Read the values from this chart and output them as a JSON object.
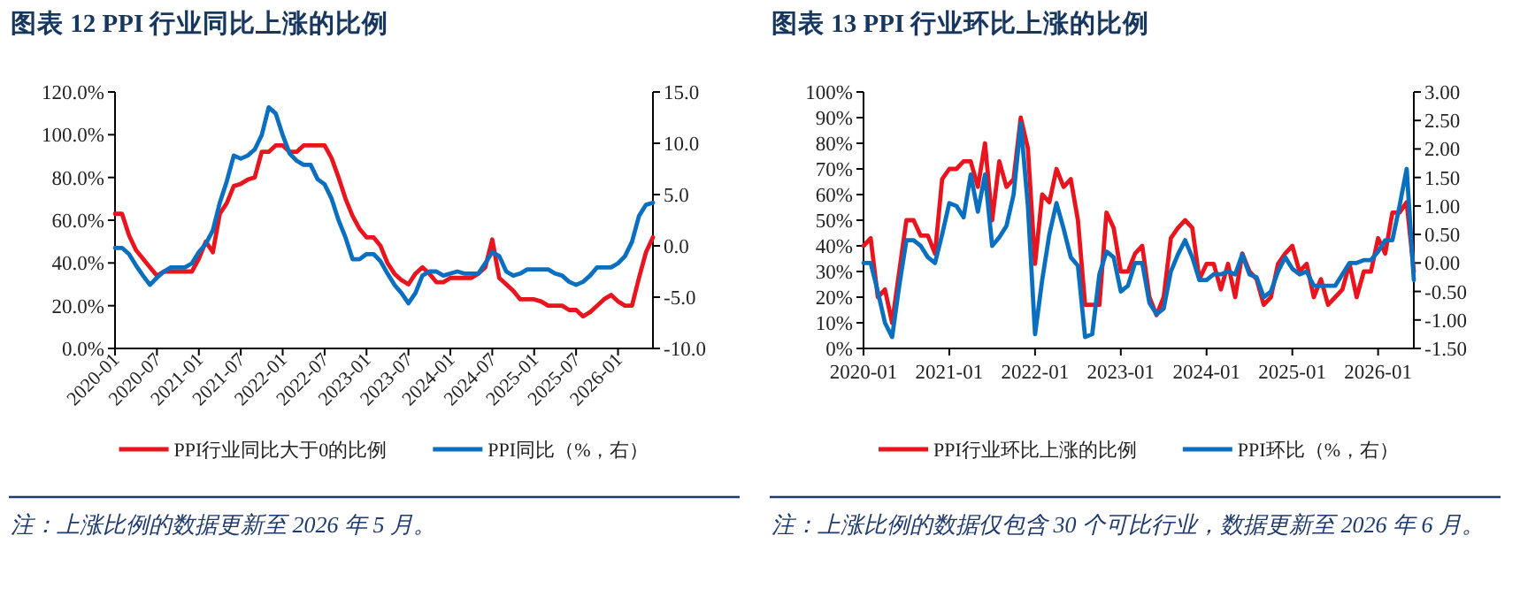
{
  "chart_data": [
    {
      "type": "line",
      "title": "图表 12   PPI 行业同比上涨的比例",
      "legend": "bottom",
      "x": [
        "2020-01",
        "2020-02",
        "2020-03",
        "2020-04",
        "2020-05",
        "2020-06",
        "2020-07",
        "2020-08",
        "2020-09",
        "2020-10",
        "2020-11",
        "2020-12",
        "2021-01",
        "2021-02",
        "2021-03",
        "2021-04",
        "2021-05",
        "2021-06",
        "2021-07",
        "2021-08",
        "2021-09",
        "2021-10",
        "2021-11",
        "2021-12",
        "2022-01",
        "2022-02",
        "2022-03",
        "2022-04",
        "2022-05",
        "2022-06",
        "2022-07",
        "2022-08",
        "2022-09",
        "2022-10",
        "2022-11",
        "2022-12",
        "2023-01",
        "2023-02",
        "2023-03",
        "2023-04",
        "2023-05",
        "2023-06",
        "2023-07",
        "2023-08",
        "2023-09",
        "2023-10",
        "2023-11",
        "2023-12",
        "2024-01",
        "2024-02",
        "2024-03",
        "2024-04",
        "2024-05",
        "2024-06",
        "2024-07",
        "2024-08",
        "2024-09",
        "2024-10",
        "2024-11",
        "2024-12",
        "2025-01",
        "2025-02",
        "2025-03",
        "2025-04",
        "2025-05",
        "2025-06",
        "2025-07",
        "2025-08",
        "2025-09",
        "2025-10",
        "2025-11",
        "2025-12",
        "2026-01",
        "2026-02",
        "2026-03",
        "2026-04",
        "2026-05",
        "2026-06"
      ],
      "xlim": [
        "2020-01",
        "2026-06"
      ],
      "xticks": [
        "2020-01",
        "2020-07",
        "2021-01",
        "2021-07",
        "2022-01",
        "2022-07",
        "2023-01",
        "2023-07",
        "2024-01",
        "2024-07",
        "2025-01",
        "2025-07",
        "2026-01"
      ],
      "ylim": [
        0,
        120
      ],
      "yticks": [
        {
          "value": 0,
          "label": "0.0%"
        },
        {
          "value": 20,
          "label": "20.0%"
        },
        {
          "value": 40,
          "label": "40.0%"
        },
        {
          "value": 60,
          "label": "60.0%"
        },
        {
          "value": 80,
          "label": "80.0%"
        },
        {
          "value": 100,
          "label": "100.0%"
        },
        {
          "value": 120,
          "label": "120.0%"
        }
      ],
      "y2lim": [
        -10,
        15
      ],
      "y2ticks": [
        {
          "value": -10,
          "label": "-10.0"
        },
        {
          "value": -5,
          "label": "-5.0"
        },
        {
          "value": 0,
          "label": "0.0"
        },
        {
          "value": 5,
          "label": "5.0"
        },
        {
          "value": 10,
          "label": "10.0"
        },
        {
          "value": 15,
          "label": "15.0"
        }
      ],
      "series": [
        {
          "name": "PPI行业同比大于0的比例",
          "color": "#e8141e",
          "values": [
            63,
            63,
            53,
            46,
            42,
            38,
            34,
            36,
            36,
            36,
            36,
            36,
            42,
            50,
            45,
            63,
            68,
            76,
            77,
            79,
            80,
            92,
            92,
            95,
            95,
            92,
            92,
            95,
            95,
            95,
            95,
            89,
            80,
            70,
            62,
            56,
            52,
            52,
            48,
            40,
            35,
            32,
            30,
            35,
            38,
            35,
            31,
            31,
            33,
            33,
            33,
            33,
            35,
            38,
            51,
            33,
            30,
            27,
            23,
            23,
            23,
            22,
            20,
            20,
            20,
            18,
            18,
            15,
            17,
            20,
            23,
            25,
            22,
            20,
            20,
            33,
            45,
            52
          ]
        },
        {
          "name": "PPI同比（%，右）",
          "color": "#0b6fc0",
          "axis": "y2",
          "values": [
            -0.2,
            -0.2,
            -0.8,
            -1.9,
            -2.9,
            -3.8,
            -3.1,
            -2.5,
            -2.1,
            -2.1,
            -2.1,
            -1.7,
            -0.6,
            0.2,
            1.5,
            4.2,
            6.3,
            8.8,
            8.5,
            8.8,
            9.4,
            10.8,
            13.5,
            12.9,
            10.8,
            9.0,
            8.3,
            7.9,
            7.9,
            6.5,
            6.0,
            4.6,
            2.5,
            0.8,
            -1.3,
            -1.3,
            -0.8,
            -0.8,
            -1.5,
            -2.7,
            -3.8,
            -4.6,
            -5.6,
            -4.6,
            -2.9,
            -2.5,
            -2.5,
            -2.9,
            -2.7,
            -2.5,
            -2.7,
            -2.7,
            -2.7,
            -1.7,
            -0.6,
            -1.0,
            -2.5,
            -2.9,
            -2.7,
            -2.3,
            -2.3,
            -2.3,
            -2.3,
            -2.7,
            -2.9,
            -3.5,
            -3.8,
            -3.5,
            -2.9,
            -2.1,
            -2.1,
            -2.1,
            -1.7,
            -1.0,
            0.4,
            2.9,
            4.0,
            4.2
          ]
        }
      ],
      "annotations": [
        "注：上涨比例的数据更新至 2026 年 5 月。"
      ]
    },
    {
      "type": "line",
      "title": "图表 13   PPI 行业环比上涨的比例",
      "legend": "bottom",
      "x": [
        "2020-01",
        "2020-02",
        "2020-03",
        "2020-04",
        "2020-05",
        "2020-06",
        "2020-07",
        "2020-08",
        "2020-09",
        "2020-10",
        "2020-11",
        "2020-12",
        "2021-01",
        "2021-02",
        "2021-03",
        "2021-04",
        "2021-05",
        "2021-06",
        "2021-07",
        "2021-08",
        "2021-09",
        "2021-10",
        "2021-11",
        "2021-12",
        "2022-01",
        "2022-02",
        "2022-03",
        "2022-04",
        "2022-05",
        "2022-06",
        "2022-07",
        "2022-08",
        "2022-09",
        "2022-10",
        "2022-11",
        "2022-12",
        "2023-01",
        "2023-02",
        "2023-03",
        "2023-04",
        "2023-05",
        "2023-06",
        "2023-07",
        "2023-08",
        "2023-09",
        "2023-10",
        "2023-11",
        "2023-12",
        "2024-01",
        "2024-02",
        "2024-03",
        "2024-04",
        "2024-05",
        "2024-06",
        "2024-07",
        "2024-08",
        "2024-09",
        "2024-10",
        "2024-11",
        "2024-12",
        "2025-01",
        "2025-02",
        "2025-03",
        "2025-04",
        "2025-05",
        "2025-06",
        "2025-07",
        "2025-08",
        "2025-09",
        "2025-10",
        "2025-11",
        "2025-12",
        "2026-01",
        "2026-02",
        "2026-03",
        "2026-04",
        "2026-05",
        "2026-06"
      ],
      "xlim": [
        "2020-01",
        "2026-06"
      ],
      "xticks": [
        "2020-01",
        "2021-01",
        "2022-01",
        "2023-01",
        "2024-01",
        "2025-01",
        "2026-01"
      ],
      "ylim": [
        0,
        100
      ],
      "yticks": [
        {
          "value": 0,
          "label": "0%"
        },
        {
          "value": 10,
          "label": "10%"
        },
        {
          "value": 20,
          "label": "20%"
        },
        {
          "value": 30,
          "label": "30%"
        },
        {
          "value": 40,
          "label": "40%"
        },
        {
          "value": 50,
          "label": "50%"
        },
        {
          "value": 60,
          "label": "60%"
        },
        {
          "value": 70,
          "label": "70%"
        },
        {
          "value": 80,
          "label": "80%"
        },
        {
          "value": 90,
          "label": "90%"
        },
        {
          "value": 100,
          "label": "100%"
        }
      ],
      "y2lim": [
        -1.5,
        3
      ],
      "y2ticks": [
        {
          "value": -1.5,
          "label": "-1.50"
        },
        {
          "value": -1,
          "label": "-1.00"
        },
        {
          "value": -0.5,
          "label": "-0.50"
        },
        {
          "value": 0,
          "label": "0.00"
        },
        {
          "value": 0.5,
          "label": "0.50"
        },
        {
          "value": 1,
          "label": "1.00"
        },
        {
          "value": 1.5,
          "label": "1.50"
        },
        {
          "value": 2,
          "label": "2.00"
        },
        {
          "value": 2.5,
          "label": "2.50"
        },
        {
          "value": 3,
          "label": "3.00"
        }
      ],
      "series": [
        {
          "name": "PPI行业环比上涨的比例",
          "color": "#e8141e",
          "values": [
            40,
            43,
            20,
            23,
            10,
            30,
            50,
            50,
            44,
            44,
            37,
            66,
            70,
            70,
            73,
            73,
            63,
            80,
            50,
            73,
            63,
            66,
            90,
            78,
            33,
            60,
            57,
            70,
            63,
            66,
            50,
            17,
            17,
            17,
            53,
            47,
            30,
            30,
            37,
            40,
            20,
            13,
            20,
            43,
            47,
            50,
            47,
            27,
            33,
            33,
            23,
            33,
            20,
            37,
            30,
            27,
            17,
            20,
            33,
            37,
            40,
            30,
            33,
            20,
            27,
            17,
            20,
            23,
            33,
            20,
            30,
            30,
            43,
            37,
            53,
            53,
            57,
            30
          ]
        },
        {
          "name": "PPI环比（%，右）",
          "color": "#0b6fc0",
          "axis": "y2",
          "values": [
            0.0,
            0.0,
            -0.5,
            -1.05,
            -1.3,
            -0.4,
            0.4,
            0.4,
            0.3,
            0.1,
            0.0,
            0.5,
            1.05,
            1.0,
            0.8,
            1.55,
            0.9,
            1.55,
            0.3,
            0.45,
            0.65,
            1.2,
            2.45,
            1.0,
            -1.25,
            -0.3,
            0.5,
            1.05,
            0.6,
            0.1,
            -0.05,
            -1.3,
            -1.25,
            -0.2,
            0.2,
            0.1,
            -0.5,
            -0.4,
            0.0,
            0.0,
            -0.7,
            -0.9,
            -0.8,
            -0.15,
            0.15,
            0.4,
            0.1,
            -0.3,
            -0.3,
            -0.2,
            -0.2,
            -0.15,
            -0.2,
            0.15,
            -0.2,
            -0.25,
            -0.6,
            -0.5,
            -0.15,
            0.1,
            -0.1,
            -0.2,
            -0.15,
            -0.4,
            -0.4,
            -0.4,
            -0.4,
            -0.2,
            0.0,
            0.0,
            0.05,
            0.05,
            0.2,
            0.4,
            0.4,
            1.0,
            1.65,
            -0.3
          ]
        }
      ],
      "annotations": [
        "注：上涨比例的数据仅包含 30 个可比行业，数据更新至 2026 年 6 月。"
      ]
    }
  ]
}
